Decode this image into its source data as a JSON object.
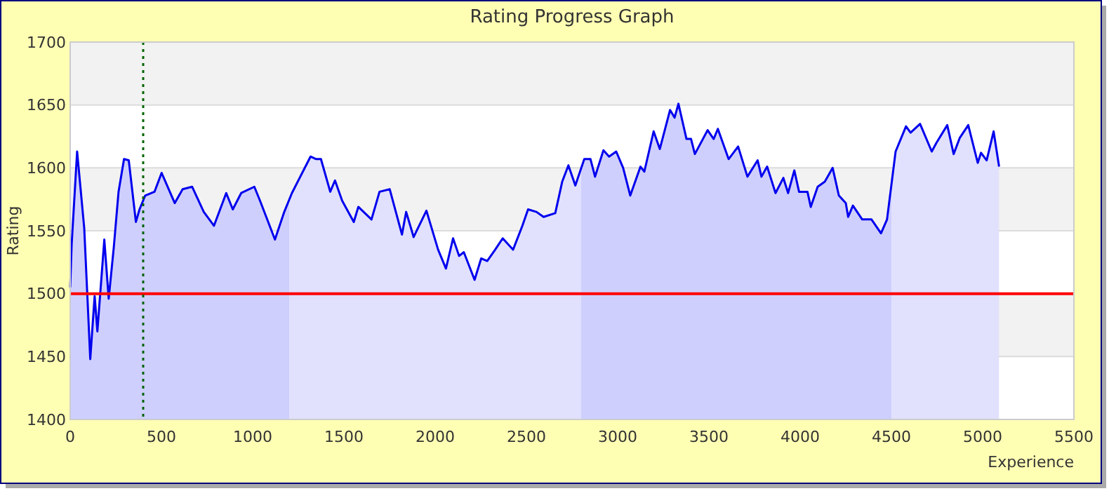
{
  "chart_data": {
    "type": "area",
    "title": "Rating Progress Graph",
    "xlabel": "Experience",
    "ylabel": "Rating",
    "xlim": [
      0,
      5500
    ],
    "xticks": [
      0,
      500,
      1000,
      1500,
      2000,
      2500,
      3000,
      3500,
      4000,
      4500,
      5000,
      5500
    ],
    "ylim": [
      1400,
      1700
    ],
    "yticks": [
      1400,
      1450,
      1500,
      1550,
      1600,
      1650,
      1700
    ],
    "grid": "y",
    "series": [
      {
        "color": "#0000ee",
        "x": [
          0,
          8,
          38,
          77,
          110,
          134,
          149,
          187,
          211,
          239,
          265,
          295,
          321,
          360,
          380,
          411,
          462,
          501,
          573,
          616,
          668,
          732,
          788,
          855,
          891,
          937,
          1009,
          1040,
          1122,
          1173,
          1215,
          1317,
          1348,
          1374,
          1425,
          1451,
          1490,
          1554,
          1579,
          1651,
          1695,
          1751,
          1818,
          1841,
          1882,
          1952,
          2016,
          2059,
          2098,
          2131,
          2157,
          2216,
          2252,
          2285,
          2329,
          2370,
          2427,
          2478,
          2509,
          2555,
          2594,
          2658,
          2696,
          2730,
          2768,
          2817,
          2851,
          2876,
          2922,
          2953,
          2992,
          3030,
          3069,
          3125,
          3146,
          3197,
          3231,
          3287,
          3312,
          3333,
          3377,
          3402,
          3423,
          3493,
          3526,
          3549,
          3608,
          3660,
          3711,
          3767,
          3788,
          3819,
          3865,
          3908,
          3934,
          3968,
          3994,
          4040,
          4058,
          4096,
          4135,
          4178,
          4212,
          4250,
          4263,
          4289,
          4340,
          4391,
          4443,
          4476,
          4523,
          4580,
          4605,
          4657,
          4721,
          4747,
          4806,
          4841,
          4875,
          4921,
          4973,
          4991,
          5022,
          5060,
          5090
        ],
        "values": [
          1505,
          1539,
          1613,
          1552,
          1448,
          1498,
          1470,
          1543,
          1496,
          1537,
          1581,
          1607,
          1606,
          1557,
          1567,
          1578,
          1581,
          1596,
          1572,
          1583,
          1585,
          1565,
          1554,
          1580,
          1567,
          1580,
          1585,
          1574,
          1543,
          1565,
          1580,
          1609,
          1607,
          1607,
          1581,
          1590,
          1574,
          1557,
          1569,
          1559,
          1581,
          1583,
          1547,
          1565,
          1545,
          1566,
          1535,
          1520,
          1544,
          1530,
          1533,
          1511,
          1528,
          1526,
          1535,
          1544,
          1535,
          1554,
          1567,
          1565,
          1561,
          1564,
          1589,
          1602,
          1586,
          1607,
          1607,
          1593,
          1614,
          1609,
          1613,
          1600,
          1578,
          1601,
          1597,
          1629,
          1615,
          1646,
          1640,
          1651,
          1623,
          1623,
          1611,
          1630,
          1623,
          1631,
          1607,
          1617,
          1593,
          1606,
          1593,
          1601,
          1580,
          1592,
          1580,
          1598,
          1581,
          1581,
          1569,
          1585,
          1589,
          1600,
          1578,
          1572,
          1561,
          1570,
          1559,
          1559,
          1548,
          1559,
          1613,
          1633,
          1628,
          1635,
          1613,
          1620,
          1634,
          1611,
          1624,
          1634,
          1604,
          1612,
          1606,
          1629,
          1601
        ]
      }
    ],
    "bands": [
      {
        "axis": "x",
        "from": 0,
        "to": 1200,
        "color": "#dcdcff"
      },
      {
        "axis": "x",
        "from": 1200,
        "to": 2800,
        "color": "#f0f0ff"
      },
      {
        "axis": "x",
        "from": 2800,
        "to": 4500,
        "color": "#dcdcff"
      },
      {
        "axis": "x",
        "from": 4500,
        "to": 5090,
        "color": "#f0f0ff"
      }
    ],
    "ref_lines": [
      {
        "axis": "y",
        "value": 1500,
        "color": "#ff0000",
        "line_style": "solid"
      },
      {
        "axis": "x",
        "value": 400,
        "color": "#006400",
        "line_style": "dotted"
      }
    ]
  }
}
